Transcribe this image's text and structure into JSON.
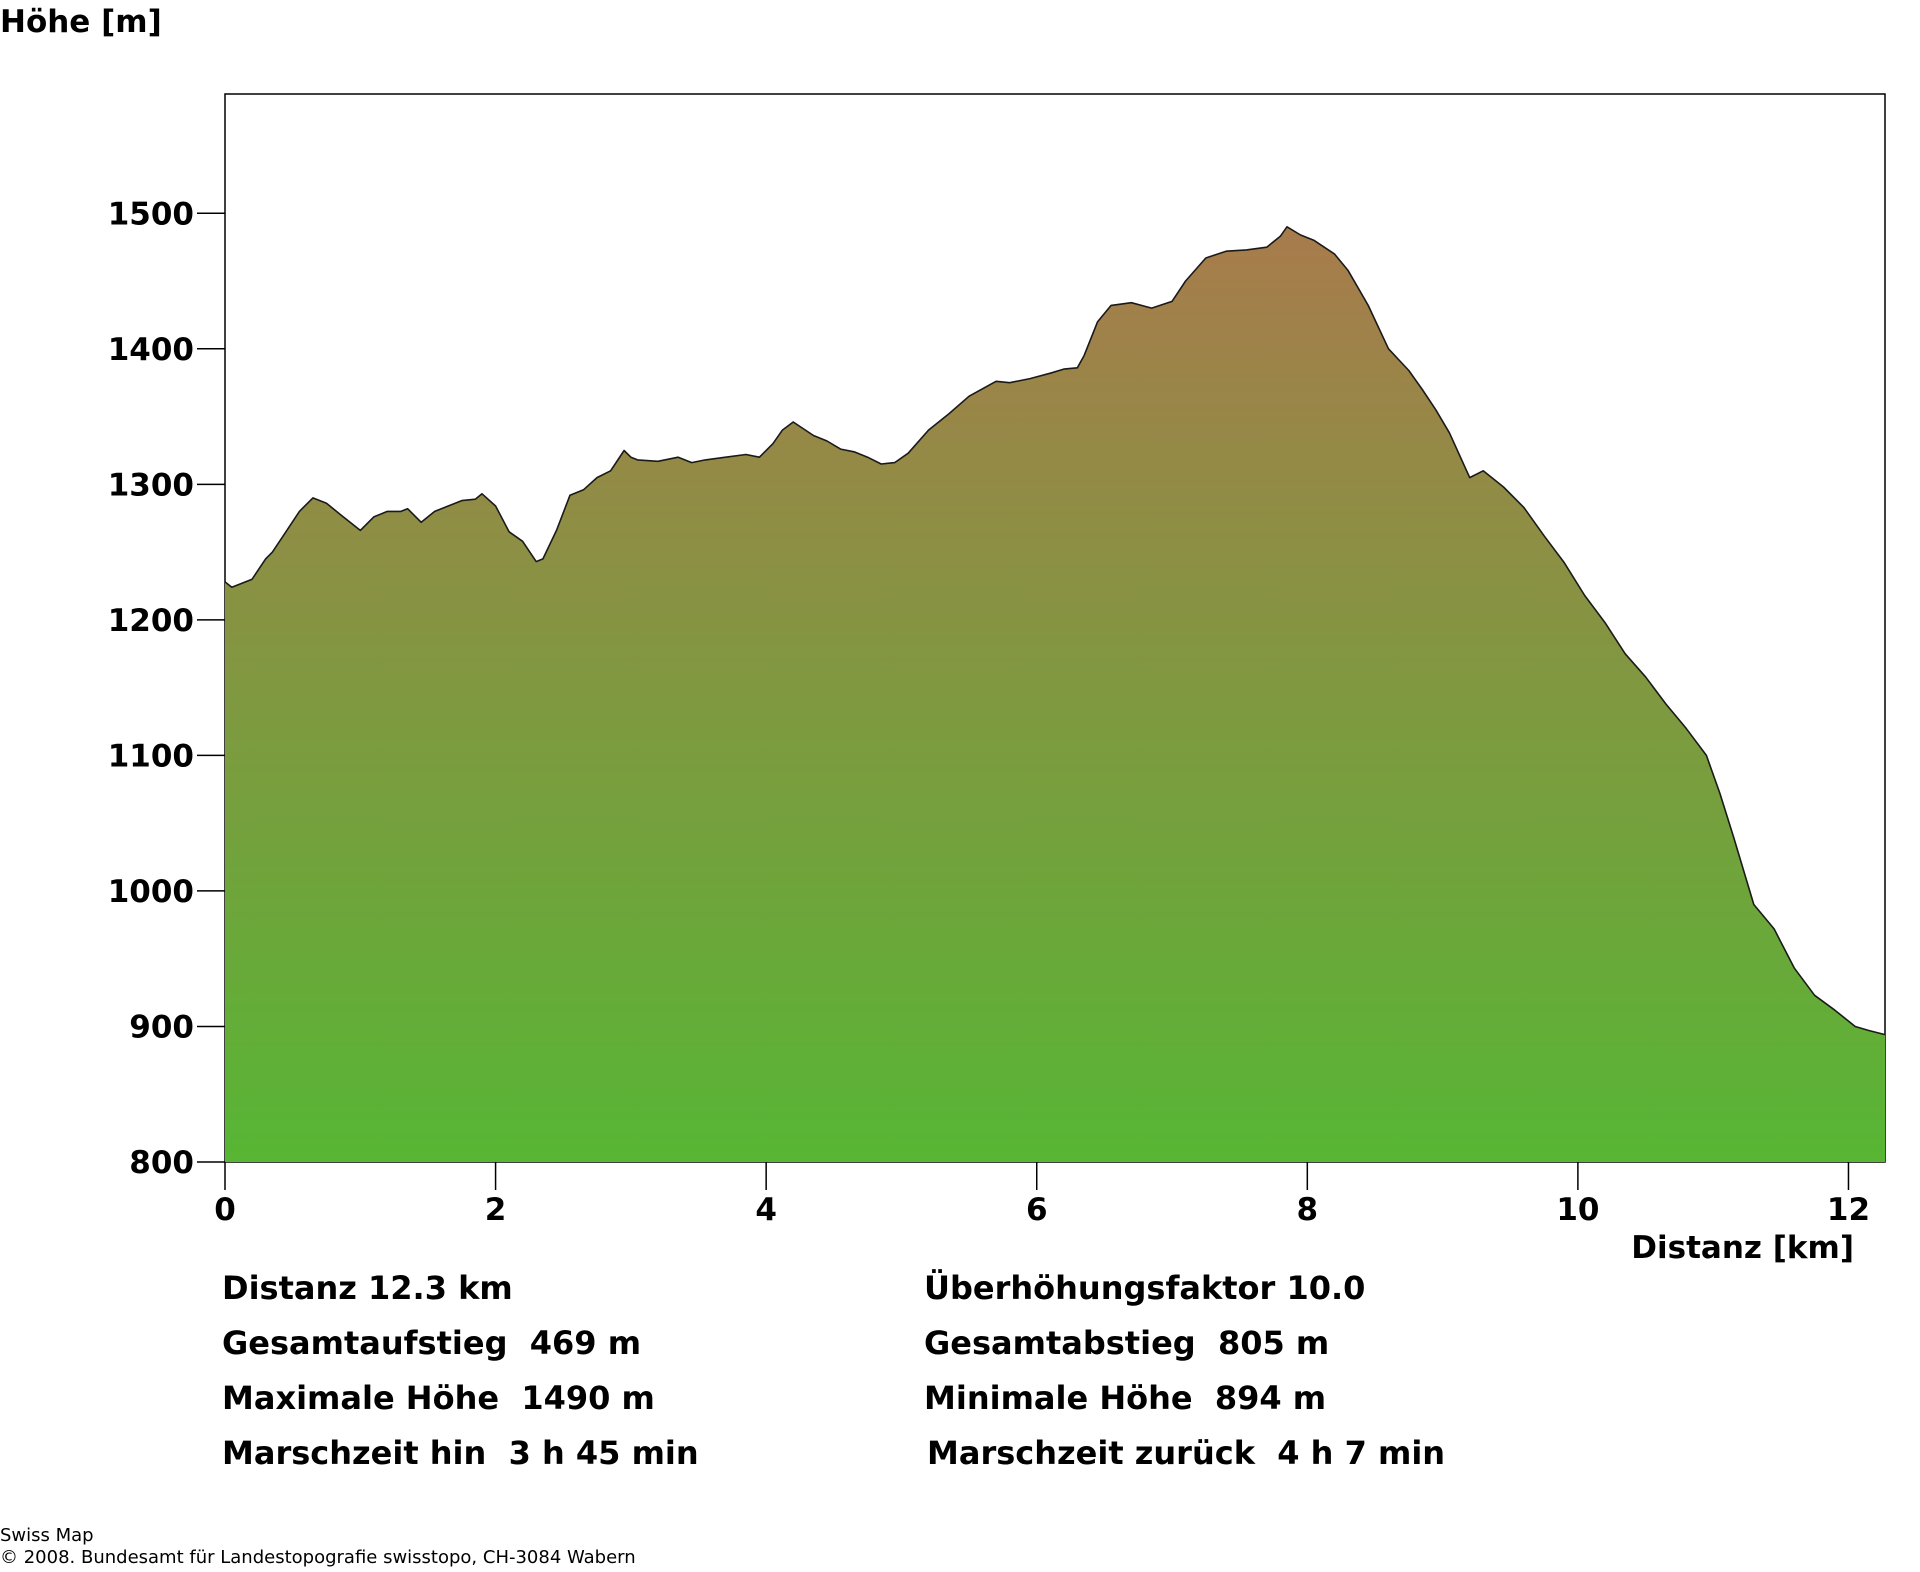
{
  "chart_data": {
    "type": "area",
    "ylabel": "Höhe [m]",
    "xlabel": "Distanz [km]",
    "xlim": [
      0,
      12.27
    ],
    "ylim": [
      800,
      1588
    ],
    "x_ticks": [
      0,
      2,
      4,
      6,
      8,
      10,
      12
    ],
    "y_ticks": [
      800,
      900,
      1000,
      1100,
      1200,
      1300,
      1400,
      1500
    ],
    "grid": false,
    "fill_gradient": {
      "top": "#a87b4c",
      "bottom": "#57b634"
    },
    "line_color": "#1a1a1a",
    "series": [
      {
        "x": [
          0,
          0.05,
          0.1,
          0.2,
          0.3,
          0.35,
          0.45,
          0.55,
          0.65,
          0.75,
          0.85,
          1.0,
          1.1,
          1.2,
          1.3,
          1.35,
          1.45,
          1.55,
          1.65,
          1.75,
          1.85,
          1.9,
          2.0,
          2.1,
          2.2,
          2.3,
          2.35,
          2.45,
          2.55,
          2.65,
          2.75,
          2.85,
          2.95,
          3.0,
          3.05,
          3.2,
          3.35,
          3.45,
          3.55,
          3.7,
          3.85,
          3.95,
          4.05,
          4.12,
          4.2,
          4.35,
          4.45,
          4.55,
          4.65,
          4.75,
          4.85,
          4.95,
          5.05,
          5.2,
          5.35,
          5.5,
          5.7,
          5.8,
          5.95,
          6.1,
          6.2,
          6.3,
          6.35,
          6.45,
          6.55,
          6.7,
          6.85,
          7.0,
          7.1,
          7.25,
          7.4,
          7.55,
          7.7,
          7.8,
          7.85,
          7.95,
          8.05,
          8.2,
          8.3,
          8.45,
          8.6,
          8.75,
          8.85,
          8.95,
          9.05,
          9.2,
          9.3,
          9.45,
          9.6,
          9.75,
          9.9,
          10.05,
          10.2,
          10.35,
          10.5,
          10.65,
          10.8,
          10.95,
          11.05,
          11.15,
          11.3,
          11.45,
          11.6,
          11.75,
          11.9,
          12.05,
          12.15,
          12.27
        ],
        "values": [
          1228,
          1224,
          1226,
          1230,
          1245,
          1250,
          1265,
          1280,
          1290,
          1286,
          1278,
          1266,
          1276,
          1280,
          1280,
          1282,
          1272,
          1280,
          1284,
          1288,
          1289,
          1293,
          1284,
          1265,
          1258,
          1243,
          1245,
          1266,
          1292,
          1296,
          1305,
          1310,
          1325,
          1320,
          1318,
          1317,
          1320,
          1316,
          1318,
          1320,
          1322,
          1320,
          1330,
          1340,
          1346,
          1336,
          1332,
          1326,
          1324,
          1320,
          1315,
          1316,
          1323,
          1340,
          1352,
          1365,
          1376,
          1375,
          1378,
          1382,
          1385,
          1386,
          1395,
          1420,
          1432,
          1434,
          1430,
          1435,
          1450,
          1467,
          1472,
          1473,
          1475,
          1483,
          1490,
          1484,
          1480,
          1470,
          1458,
          1432,
          1400,
          1384,
          1370,
          1355,
          1338,
          1305,
          1310,
          1298,
          1283,
          1262,
          1242,
          1218,
          1198,
          1175,
          1158,
          1138,
          1120,
          1100,
          1072,
          1040,
          990,
          972,
          943,
          923,
          912,
          900,
          897,
          894
        ]
      }
    ]
  },
  "stats": {
    "distanz": "Distanz 12.3 km",
    "ueberhoehung": "Überhöhungsfaktor 10.0",
    "gesamtaufstieg": "Gesamtaufstieg  469 m",
    "gesamtabstieg": "Gesamtabstieg  805 m",
    "max_hoehe": "Maximale Höhe  1490 m",
    "min_hoehe": "Minimale Höhe  894 m",
    "marschzeit_hin": "Marschzeit hin  3 h 45 min",
    "marschzeit_zurueck": "Marschzeit zurück  4 h 7 min"
  },
  "footer": {
    "line1": "Swiss Map",
    "line2": "© 2008. Bundesamt für Landestopografie swisstopo, CH-3084 Wabern"
  }
}
